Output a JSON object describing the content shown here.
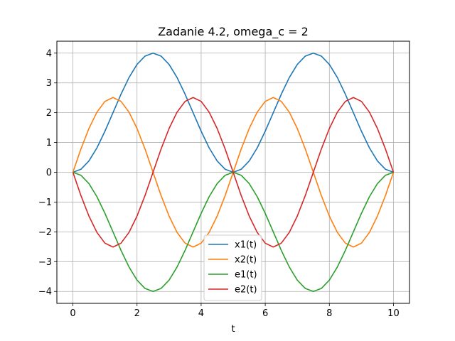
{
  "chart_data": {
    "type": "line",
    "title": "Zadanie 4.2, omega_c = 2",
    "xlabel": "t",
    "ylabel": "",
    "xlim": [
      -0.5,
      10.5
    ],
    "ylim": [
      -4.4,
      4.4
    ],
    "xticks": [
      0,
      2,
      4,
      6,
      8,
      10
    ],
    "yticks": [
      -4,
      -3,
      -2,
      -1,
      0,
      1,
      2,
      3,
      4
    ],
    "grid": true,
    "legend_position": "bottom-center",
    "series": [
      {
        "name": "x1(t)",
        "color": "#1f77b4",
        "x": [
          0,
          0.25,
          0.5,
          0.75,
          1.0,
          1.25,
          1.5,
          1.75,
          2.0,
          2.25,
          2.5,
          2.75,
          3.0,
          3.25,
          3.5,
          3.75,
          4.0,
          4.25,
          4.5,
          4.75,
          5.0,
          5.25,
          5.5,
          5.75,
          6.0,
          6.25,
          6.5,
          6.75,
          7.0,
          7.25,
          7.5,
          7.75,
          8.0,
          8.25,
          8.5,
          8.75,
          9.0,
          9.25,
          9.5,
          9.75,
          10.0
        ],
        "y": [
          0,
          0.1,
          0.38,
          0.82,
          1.38,
          2.0,
          2.62,
          3.18,
          3.62,
          3.9,
          4.0,
          3.9,
          3.62,
          3.18,
          2.62,
          2.0,
          1.38,
          0.82,
          0.38,
          0.1,
          0,
          0.1,
          0.38,
          0.82,
          1.38,
          2.0,
          2.62,
          3.18,
          3.62,
          3.9,
          4.0,
          3.9,
          3.62,
          3.18,
          2.62,
          2.0,
          1.38,
          0.82,
          0.38,
          0.1,
          0
        ]
      },
      {
        "name": "x2(t)",
        "color": "#ff7f0e",
        "x": [
          0,
          0.25,
          0.5,
          0.75,
          1.0,
          1.25,
          1.5,
          1.75,
          2.0,
          2.25,
          2.5,
          2.75,
          3.0,
          3.25,
          3.5,
          3.75,
          4.0,
          4.25,
          4.5,
          4.75,
          5.0,
          5.25,
          5.5,
          5.75,
          6.0,
          6.25,
          6.5,
          6.75,
          7.0,
          7.25,
          7.5,
          7.75,
          8.0,
          8.25,
          8.5,
          8.75,
          9.0,
          9.25,
          9.5,
          9.75,
          10.0
        ],
        "y": [
          0,
          0.78,
          1.47,
          2.02,
          2.38,
          2.51,
          2.38,
          2.02,
          1.47,
          0.78,
          0,
          -0.78,
          -1.47,
          -2.02,
          -2.38,
          -2.51,
          -2.38,
          -2.02,
          -1.47,
          -0.78,
          0,
          0.78,
          1.47,
          2.02,
          2.38,
          2.51,
          2.38,
          2.02,
          1.47,
          0.78,
          0,
          -0.78,
          -1.47,
          -2.02,
          -2.38,
          -2.51,
          -2.38,
          -2.02,
          -1.47,
          -0.78,
          0
        ]
      },
      {
        "name": "e1(t)",
        "color": "#2ca02c",
        "x": [
          0,
          0.25,
          0.5,
          0.75,
          1.0,
          1.25,
          1.5,
          1.75,
          2.0,
          2.25,
          2.5,
          2.75,
          3.0,
          3.25,
          3.5,
          3.75,
          4.0,
          4.25,
          4.5,
          4.75,
          5.0,
          5.25,
          5.5,
          5.75,
          6.0,
          6.25,
          6.5,
          6.75,
          7.0,
          7.25,
          7.5,
          7.75,
          8.0,
          8.25,
          8.5,
          8.75,
          9.0,
          9.25,
          9.5,
          9.75,
          10.0
        ],
        "y": [
          0,
          -0.1,
          -0.38,
          -0.82,
          -1.38,
          -2.0,
          -2.62,
          -3.18,
          -3.62,
          -3.9,
          -4.0,
          -3.9,
          -3.62,
          -3.18,
          -2.62,
          -2.0,
          -1.38,
          -0.82,
          -0.38,
          -0.1,
          0,
          -0.1,
          -0.38,
          -0.82,
          -1.38,
          -2.0,
          -2.62,
          -3.18,
          -3.62,
          -3.9,
          -4.0,
          -3.9,
          -3.62,
          -3.18,
          -2.62,
          -2.0,
          -1.38,
          -0.82,
          -0.38,
          -0.1,
          0
        ]
      },
      {
        "name": "e2(t)",
        "color": "#d62728",
        "x": [
          0,
          0.25,
          0.5,
          0.75,
          1.0,
          1.25,
          1.5,
          1.75,
          2.0,
          2.25,
          2.5,
          2.75,
          3.0,
          3.25,
          3.5,
          3.75,
          4.0,
          4.25,
          4.5,
          4.75,
          5.0,
          5.25,
          5.5,
          5.75,
          6.0,
          6.25,
          6.5,
          6.75,
          7.0,
          7.25,
          7.5,
          7.75,
          8.0,
          8.25,
          8.5,
          8.75,
          9.0,
          9.25,
          9.5,
          9.75,
          10.0
        ],
        "y": [
          0,
          -0.78,
          -1.47,
          -2.02,
          -2.38,
          -2.51,
          -2.38,
          -2.02,
          -1.47,
          -0.78,
          0,
          0.78,
          1.47,
          2.02,
          2.38,
          2.51,
          2.38,
          2.02,
          1.47,
          0.78,
          0,
          -0.78,
          -1.47,
          -2.02,
          -2.38,
          -2.51,
          -2.38,
          -2.02,
          -1.47,
          -0.78,
          0,
          0.78,
          1.47,
          2.02,
          2.38,
          2.51,
          2.38,
          2.02,
          1.47,
          0.78,
          0
        ]
      }
    ]
  }
}
